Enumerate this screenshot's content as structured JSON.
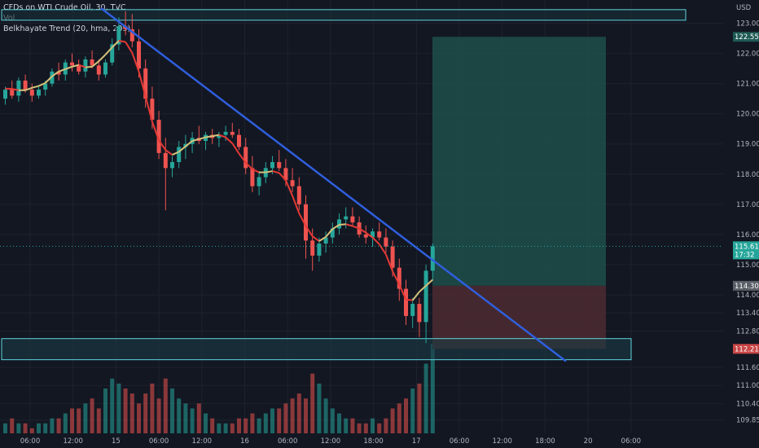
{
  "legend": {
    "symbol_line": "CFDs on WTI Crude Oil, 30, TVC",
    "vol_label": "Vol",
    "indicator_label": "Belkhayate Trend (20, hma, 209)"
  },
  "currency_label": "USD",
  "colors": {
    "background": "#131722",
    "bull": "#26a69a",
    "bear": "#ef5350",
    "trend_up": "#d4c27a",
    "trend_down": "#e53935",
    "trendline": "#2f5fde",
    "zone_border": "#5fd3dd",
    "target_zone": "#1f4f4a",
    "stop_zone": "#4a2a31"
  },
  "price_badges": {
    "target": "122.55",
    "last_price": "115.61",
    "countdown": "17:32",
    "entry": "114.30",
    "stop": "112.21"
  },
  "chart_data": {
    "type": "candlestick",
    "title": "CFDs on WTI Crude Oil, 30, TVC",
    "y_axis": {
      "unit": "USD",
      "range": [
        109.6,
        123.5
      ],
      "ticks": [
        "123.00",
        "122.00",
        "121.00",
        "120.00",
        "119.00",
        "118.00",
        "117.00",
        "116.00",
        "115.00",
        "114.00",
        "113.40",
        "112.80",
        "111.60",
        "111.00",
        "110.40",
        "109.85"
      ]
    },
    "x_axis": {
      "ticks": [
        "06:00",
        "12:00",
        "15",
        "06:00",
        "12:00",
        "16",
        "06:00",
        "12:00",
        "18:00",
        "17",
        "06:00",
        "12:00",
        "18:00",
        "20",
        "06:00"
      ]
    },
    "drawings": {
      "trendline": {
        "from": {
          "time": "13th 12:00",
          "price": 123.5
        },
        "to": {
          "time": "17th 06:00",
          "price": 111.8
        }
      },
      "resistance_zone": {
        "price_top": 123.45,
        "price_bottom": 123.1
      },
      "support_zone": {
        "price_top": 112.55,
        "price_bottom": 111.85
      },
      "long_position": {
        "entry": 114.3,
        "target": 122.55,
        "stop": 112.21
      }
    },
    "series": [
      {
        "name": "Vol",
        "type": "volume"
      }
    ],
    "candles": [
      [
        120.5,
        120.9,
        120.3,
        120.8
      ],
      [
        120.8,
        121.1,
        120.5,
        120.6
      ],
      [
        120.6,
        121.2,
        120.4,
        121.1
      ],
      [
        121.1,
        121.3,
        120.7,
        120.8
      ],
      [
        120.8,
        121.0,
        120.4,
        120.6
      ],
      [
        120.6,
        120.9,
        120.5,
        120.8
      ],
      [
        120.8,
        121.1,
        120.6,
        121.0
      ],
      [
        121.0,
        121.5,
        120.9,
        121.4
      ],
      [
        121.4,
        121.7,
        121.1,
        121.3
      ],
      [
        121.3,
        121.8,
        121.1,
        121.7
      ],
      [
        121.7,
        122.0,
        121.4,
        121.6
      ],
      [
        121.6,
        121.8,
        121.3,
        121.4
      ],
      [
        121.4,
        121.9,
        121.2,
        121.8
      ],
      [
        121.8,
        122.1,
        121.5,
        121.6
      ],
      [
        121.6,
        121.8,
        121.1,
        121.3
      ],
      [
        121.3,
        121.8,
        121.2,
        121.7
      ],
      [
        121.7,
        122.5,
        121.6,
        122.3
      ],
      [
        122.3,
        123.2,
        122.1,
        122.9
      ],
      [
        122.9,
        123.4,
        122.6,
        122.8
      ],
      [
        122.8,
        123.3,
        122.2,
        122.4
      ],
      [
        122.4,
        122.8,
        121.2,
        121.5
      ],
      [
        121.5,
        121.8,
        120.2,
        120.5
      ],
      [
        120.5,
        120.9,
        119.5,
        119.8
      ],
      [
        119.8,
        120.1,
        118.5,
        118.7
      ],
      [
        118.7,
        119.2,
        116.8,
        118.2
      ],
      [
        118.2,
        118.6,
        117.9,
        118.4
      ],
      [
        118.4,
        119.1,
        118.2,
        118.9
      ],
      [
        118.9,
        119.3,
        118.5,
        119.0
      ],
      [
        119.0,
        119.4,
        118.7,
        119.2
      ],
      [
        119.2,
        119.6,
        119.0,
        119.1
      ],
      [
        119.1,
        119.4,
        118.8,
        119.3
      ],
      [
        119.3,
        119.5,
        119.0,
        119.2
      ],
      [
        119.2,
        119.4,
        118.9,
        119.3
      ],
      [
        119.3,
        119.6,
        119.1,
        119.4
      ],
      [
        119.4,
        119.7,
        119.2,
        119.3
      ],
      [
        119.3,
        119.5,
        118.8,
        118.9
      ],
      [
        118.9,
        119.2,
        118.0,
        118.2
      ],
      [
        118.2,
        118.6,
        117.4,
        117.6
      ],
      [
        117.6,
        118.1,
        117.3,
        117.9
      ],
      [
        117.9,
        118.4,
        117.7,
        118.2
      ],
      [
        118.2,
        118.6,
        118.0,
        118.4
      ],
      [
        118.4,
        118.8,
        118.1,
        118.2
      ],
      [
        118.2,
        118.5,
        117.6,
        117.8
      ],
      [
        117.8,
        118.2,
        117.4,
        117.6
      ],
      [
        117.6,
        117.9,
        116.8,
        117.0
      ],
      [
        117.0,
        117.3,
        115.2,
        115.8
      ],
      [
        115.8,
        116.2,
        114.8,
        115.3
      ],
      [
        115.3,
        115.9,
        115.1,
        115.7
      ],
      [
        115.7,
        116.1,
        115.4,
        115.9
      ],
      [
        115.9,
        116.4,
        115.7,
        116.2
      ],
      [
        116.2,
        116.7,
        116.0,
        116.5
      ],
      [
        116.5,
        116.9,
        116.2,
        116.6
      ],
      [
        116.6,
        116.9,
        116.3,
        116.4
      ],
      [
        116.4,
        116.6,
        115.9,
        116.0
      ],
      [
        116.0,
        116.3,
        115.7,
        115.9
      ],
      [
        115.9,
        116.2,
        115.6,
        116.1
      ],
      [
        116.1,
        116.4,
        115.8,
        115.9
      ],
      [
        115.9,
        116.2,
        115.4,
        115.6
      ],
      [
        115.6,
        115.8,
        114.6,
        114.9
      ],
      [
        114.9,
        115.2,
        113.8,
        114.2
      ],
      [
        114.2,
        114.5,
        113.0,
        113.3
      ],
      [
        113.3,
        113.9,
        112.9,
        113.7
      ],
      [
        113.7,
        113.9,
        112.6,
        113.1
      ],
      [
        113.1,
        115.0,
        112.4,
        114.8
      ],
      [
        114.8,
        115.7,
        114.5,
        115.61
      ]
    ],
    "volume": [
      2,
      3,
      2,
      2,
      1,
      2,
      2,
      3,
      3,
      4,
      5,
      5,
      6,
      7,
      5,
      9,
      11,
      10,
      9,
      8,
      6,
      8,
      10,
      7,
      11,
      9,
      7,
      6,
      5,
      6,
      4,
      3,
      2,
      2,
      2,
      3,
      3,
      4,
      3,
      4,
      5,
      5,
      6,
      7,
      8,
      7,
      12,
      10,
      7,
      5,
      4,
      3,
      3,
      2,
      2,
      3,
      2,
      3,
      5,
      6,
      7,
      9,
      10,
      14,
      18
    ]
  }
}
